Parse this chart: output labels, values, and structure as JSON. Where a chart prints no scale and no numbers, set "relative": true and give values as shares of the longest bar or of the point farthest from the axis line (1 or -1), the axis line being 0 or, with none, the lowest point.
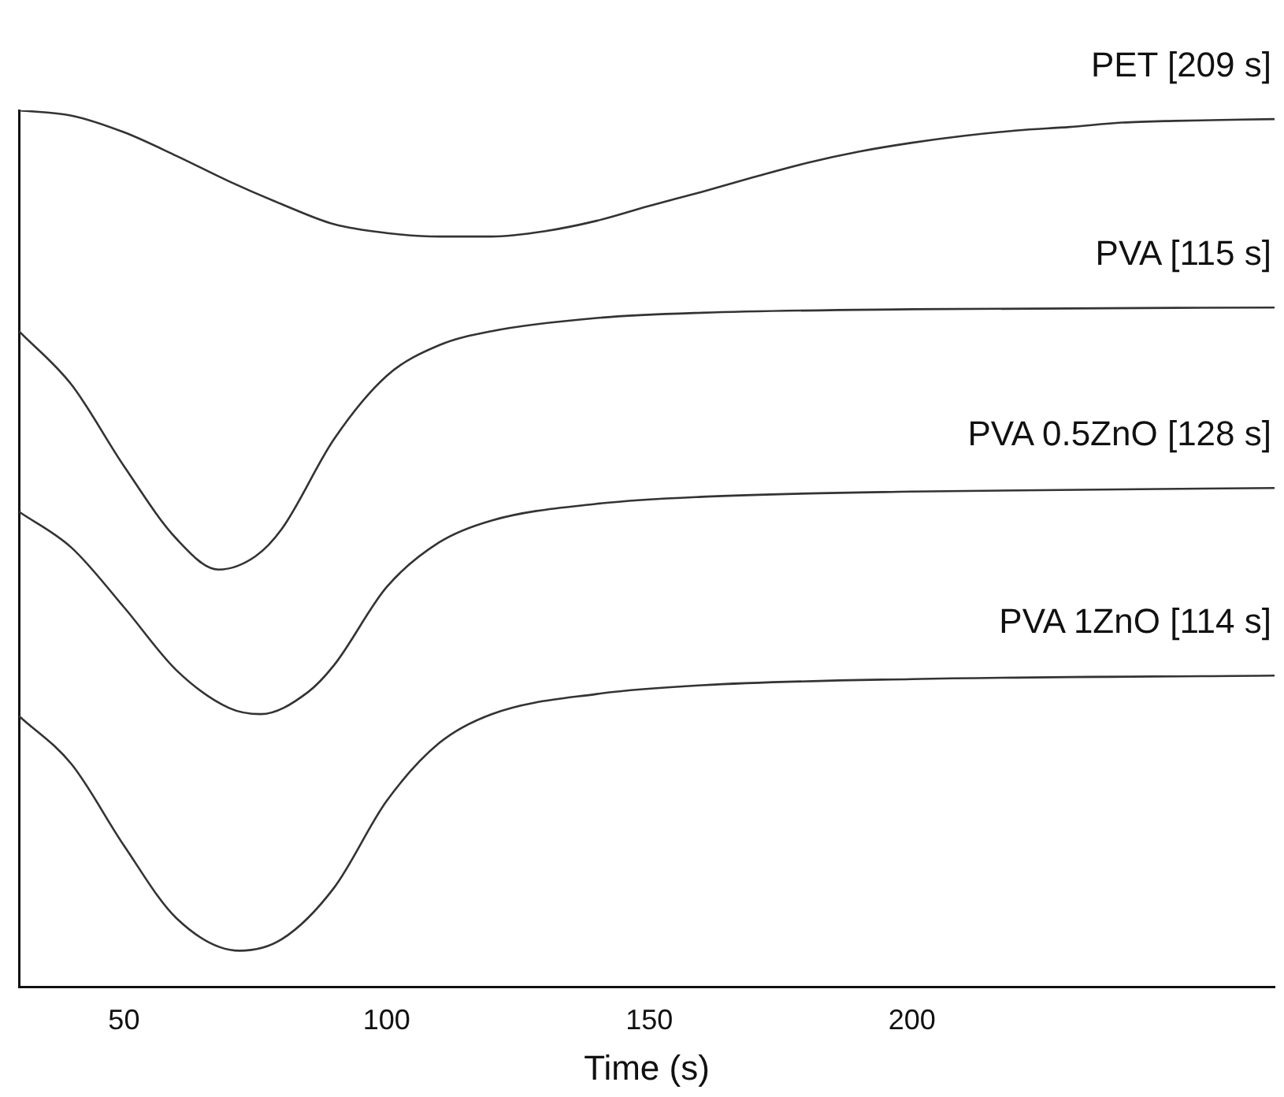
{
  "chart_data": {
    "type": "line",
    "relative": true,
    "xlabel": "Time (s)",
    "xlim": [
      30,
      269
    ],
    "xticks": [
      50,
      100,
      150,
      200
    ],
    "grid": false,
    "legend": false,
    "marker": "none",
    "line_style": "solid",
    "series": [
      {
        "name": "PET [209 s]",
        "color": "#333333",
        "x": [
          30,
          40,
          50,
          60,
          70,
          80,
          90,
          100,
          110,
          120,
          130,
          140,
          150,
          160,
          170,
          180,
          190,
          200,
          210,
          220,
          230,
          240,
          250,
          269
        ],
        "values": [
          1.0,
          0.994,
          0.975,
          0.948,
          0.919,
          0.893,
          0.87,
          0.86,
          0.856,
          0.856,
          0.862,
          0.874,
          0.891,
          0.907,
          0.924,
          0.94,
          0.953,
          0.963,
          0.971,
          0.977,
          0.981,
          0.986,
          0.988,
          0.99
        ]
      },
      {
        "name": "PVA [115 s]",
        "color": "#333333",
        "x": [
          30,
          40,
          50,
          60,
          68,
          75,
          80,
          90,
          100,
          110,
          120,
          140,
          160,
          200,
          269
        ],
        "values": [
          0.748,
          0.687,
          0.594,
          0.511,
          0.476,
          0.491,
          0.522,
          0.625,
          0.697,
          0.732,
          0.748,
          0.763,
          0.769,
          0.773,
          0.775
        ]
      },
      {
        "name": "PVA 0.5ZnO [128 s]",
        "color": "#333333",
        "x": [
          30,
          40,
          50,
          60,
          70,
          76,
          85,
          90,
          100,
          110,
          120,
          140,
          160,
          200,
          269
        ],
        "values": [
          0.542,
          0.501,
          0.433,
          0.361,
          0.318,
          0.311,
          0.336,
          0.367,
          0.456,
          0.507,
          0.532,
          0.551,
          0.559,
          0.565,
          0.569
        ]
      },
      {
        "name": "PVA 1ZnO [114 s]",
        "color": "#333333",
        "x": [
          30,
          40,
          50,
          60,
          72,
          80,
          90,
          100,
          110,
          120,
          140,
          160,
          200,
          269
        ],
        "values": [
          0.309,
          0.254,
          0.161,
          0.078,
          0.041,
          0.054,
          0.113,
          0.212,
          0.278,
          0.311,
          0.334,
          0.344,
          0.351,
          0.355
        ]
      }
    ]
  }
}
